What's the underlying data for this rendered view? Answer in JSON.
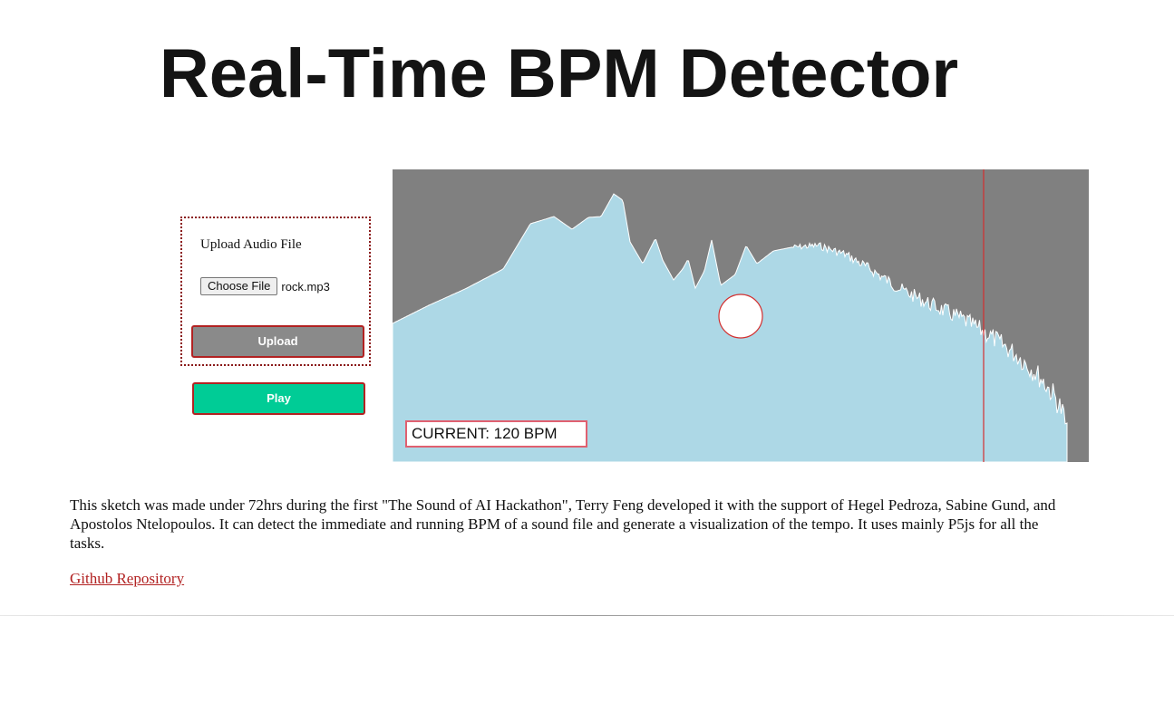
{
  "page": {
    "title": "Real-Time BPM Detector"
  },
  "upload": {
    "label": "Upload Audio File",
    "choose_file_label": "Choose File",
    "file_name": "rock.mp3",
    "upload_button": "Upload"
  },
  "controls": {
    "play_button": "Play"
  },
  "visualizer": {
    "bpm_text": "CURRENT: 120 BPM",
    "colors": {
      "background": "#808080",
      "spectrum": "#add8e6",
      "playhead": "#d32f2f",
      "beat_circle_fill": "#ffffff",
      "beat_circle_stroke": "#d32f2f"
    }
  },
  "footer": {
    "description": "This sketch was made under 72hrs during the first \"The Sound of AI Hackathon\", Terry Feng developed it with the support of Hegel Pedroza, Sabine Gund, and Apostolos Ntelopoulos. It can detect the immediate and running BPM of a sound file and generate a visualization of the tempo. It uses mainly P5js for all the tasks.",
    "repo_link": "Github Repository"
  }
}
